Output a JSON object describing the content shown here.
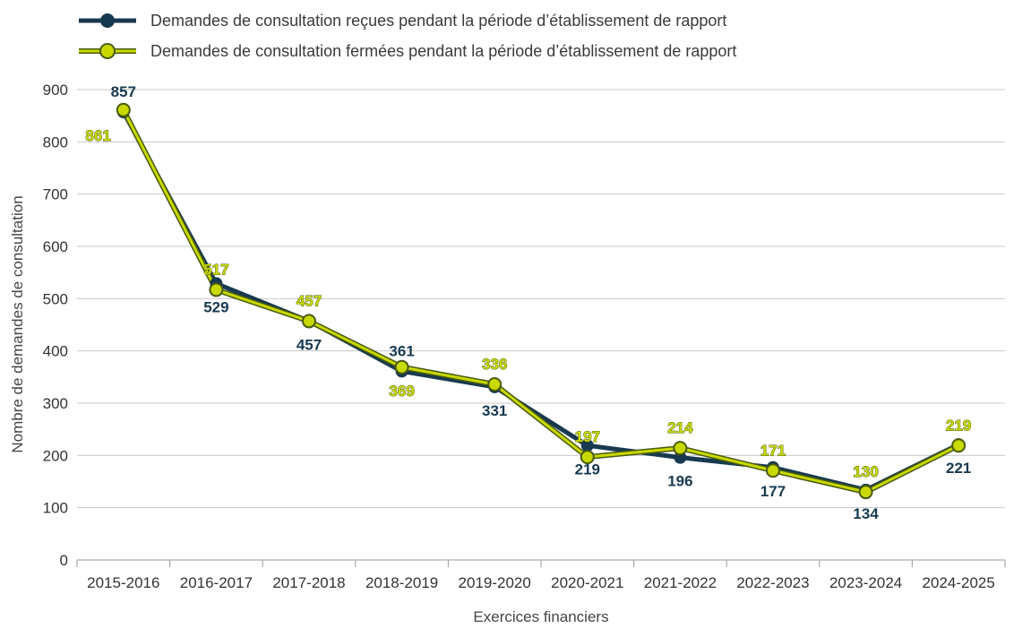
{
  "colors": {
    "received": "#17394f",
    "closed_fill": "#c8d900",
    "closed_outline": "#4a5a10",
    "grid": "#c8c8c8"
  },
  "chart_data": {
    "type": "line",
    "title": "",
    "xlabel": "Exercices financiers",
    "ylabel": "Nombre de demandes de consultation",
    "ylim": [
      0,
      900
    ],
    "yticks": [
      0,
      100,
      200,
      300,
      400,
      500,
      600,
      700,
      800,
      900
    ],
    "grid": true,
    "legend_position": "top-left",
    "categories": [
      "2015-2016",
      "2016-2017",
      "2017-2018",
      "2018-2019",
      "2019-2020",
      "2020-2021",
      "2021-2022",
      "2022-2023",
      "2023-2024",
      "2024-2025"
    ],
    "series": [
      {
        "name": "Demandes de consultation reçues pendant la période d’établissement de rapport",
        "values": [
          857,
          529,
          457,
          361,
          331,
          219,
          196,
          177,
          134,
          221
        ],
        "label_side": [
          "above",
          "below",
          "below",
          "above",
          "below",
          "below",
          "below",
          "below",
          "below",
          "below"
        ]
      },
      {
        "name": "Demandes de consultation fermées pendant la période d’établissement de rapport",
        "values": [
          861,
          517,
          457,
          369,
          336,
          197,
          214,
          171,
          130,
          219
        ],
        "label_side": [
          "left",
          "above",
          "above",
          "below",
          "above",
          "above",
          "above",
          "above",
          "above",
          "above"
        ]
      }
    ]
  }
}
